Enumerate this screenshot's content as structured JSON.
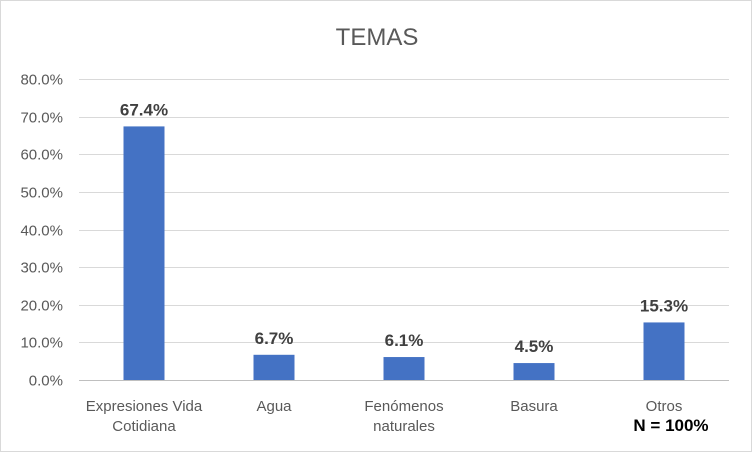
{
  "chart_data": {
    "type": "bar",
    "title": "TEMAS",
    "categories": [
      [
        "Expresiones Vida",
        "Cotidiana"
      ],
      [
        "Agua"
      ],
      [
        "Fenómenos",
        "naturales"
      ],
      [
        "Basura"
      ],
      [
        "Otros"
      ]
    ],
    "values": [
      67.4,
      6.7,
      6.1,
      4.5,
      15.3
    ],
    "data_labels": [
      "67.4%",
      "6.7%",
      "6.1%",
      "4.5%",
      "15.3%"
    ],
    "ylim": [
      0,
      80
    ],
    "yticks": [
      0,
      10,
      20,
      30,
      40,
      50,
      60,
      70,
      80
    ],
    "ytick_labels": [
      "0.0%",
      "10.0%",
      "20.0%",
      "30.0%",
      "40.0%",
      "50.0%",
      "60.0%",
      "70.0%",
      "80.0%"
    ],
    "grid": true,
    "legend": "none",
    "bar_color": "#4472c4",
    "note": "N = 100%"
  }
}
